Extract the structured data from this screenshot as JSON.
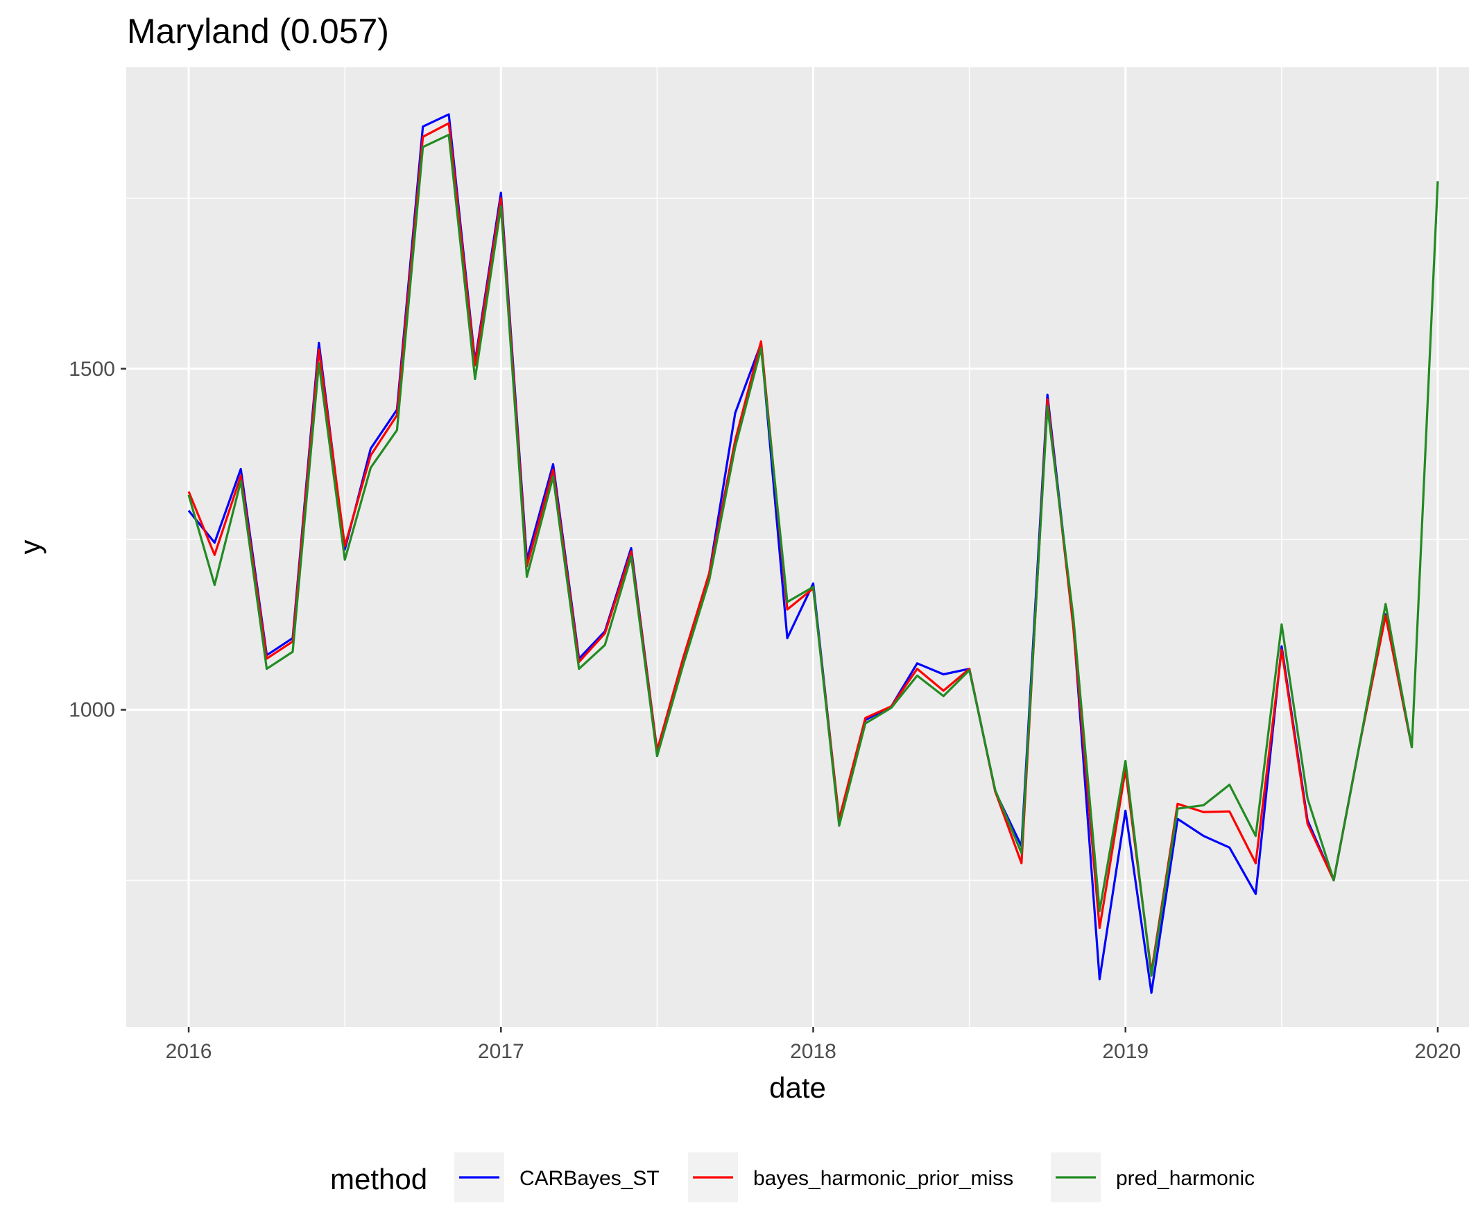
{
  "chart_data": {
    "type": "line",
    "title": "Maryland (0.057)",
    "xlabel": "date",
    "ylabel": "y",
    "x_ticks": [
      "2016",
      "2017",
      "2018",
      "2019",
      "2020"
    ],
    "y_ticks": [
      1000,
      1500
    ],
    "ylim": [
      535,
      1942
    ],
    "xlim": [
      2015.8,
      2020.1
    ],
    "grid": true,
    "legend": {
      "title": "method",
      "position": "bottom"
    },
    "x": [
      2016.0,
      2016.083,
      2016.167,
      2016.25,
      2016.333,
      2016.417,
      2016.5,
      2016.583,
      2016.667,
      2016.75,
      2016.833,
      2016.917,
      2017.0,
      2017.083,
      2017.167,
      2017.25,
      2017.333,
      2017.417,
      2017.5,
      2017.583,
      2017.667,
      2017.75,
      2017.833,
      2017.917,
      2018.0,
      2018.083,
      2018.167,
      2018.25,
      2018.333,
      2018.417,
      2018.5,
      2018.583,
      2018.667,
      2018.75,
      2018.833,
      2018.917,
      2019.0,
      2019.083,
      2019.167,
      2019.25,
      2019.333,
      2019.417,
      2019.5,
      2019.583,
      2019.667,
      2019.75,
      2019.833,
      2019.917,
      2020.0
    ],
    "series": [
      {
        "name": "CARBayes_ST",
        "color": "#0000ff",
        "values": [
          1292,
          1245,
          1353,
          1080,
          1105,
          1538,
          1235,
          1383,
          1440,
          1855,
          1873,
          1510,
          1758,
          1220,
          1360,
          1075,
          1115,
          1237,
          940,
          1075,
          1200,
          1435,
          1537,
          1105,
          1185,
          838,
          985,
          1005,
          1068,
          1052,
          1060,
          880,
          800,
          1462,
          1125,
          605,
          852,
          585,
          840,
          815,
          798,
          730,
          1093,
          838,
          750,
          950,
          1140,
          945,
          null
        ]
      },
      {
        "name": "bayes_harmonic_prior_miss",
        "color": "#ff0000",
        "values": [
          1320,
          1227,
          1343,
          1075,
          1100,
          1528,
          1240,
          1373,
          1432,
          1840,
          1860,
          1505,
          1750,
          1210,
          1352,
          1070,
          1112,
          1232,
          940,
          1075,
          1200,
          1395,
          1540,
          1147,
          1178,
          840,
          988,
          1005,
          1060,
          1028,
          1060,
          880,
          775,
          1455,
          1120,
          680,
          912,
          615,
          862,
          850,
          851,
          775,
          1088,
          833,
          750,
          950,
          1138,
          945,
          null
        ]
      },
      {
        "name": "pred_harmonic",
        "color": "#228b22",
        "values": [
          1315,
          1183,
          1335,
          1060,
          1085,
          1508,
          1220,
          1355,
          1410,
          1825,
          1843,
          1485,
          1738,
          1195,
          1342,
          1060,
          1095,
          1225,
          932,
          1065,
          1190,
          1385,
          1530,
          1158,
          1180,
          830,
          980,
          1003,
          1050,
          1020,
          1058,
          882,
          790,
          1445,
          1135,
          705,
          925,
          610,
          855,
          860,
          890,
          815,
          1125,
          870,
          750,
          950,
          1155,
          945,
          1775
        ]
      }
    ]
  }
}
